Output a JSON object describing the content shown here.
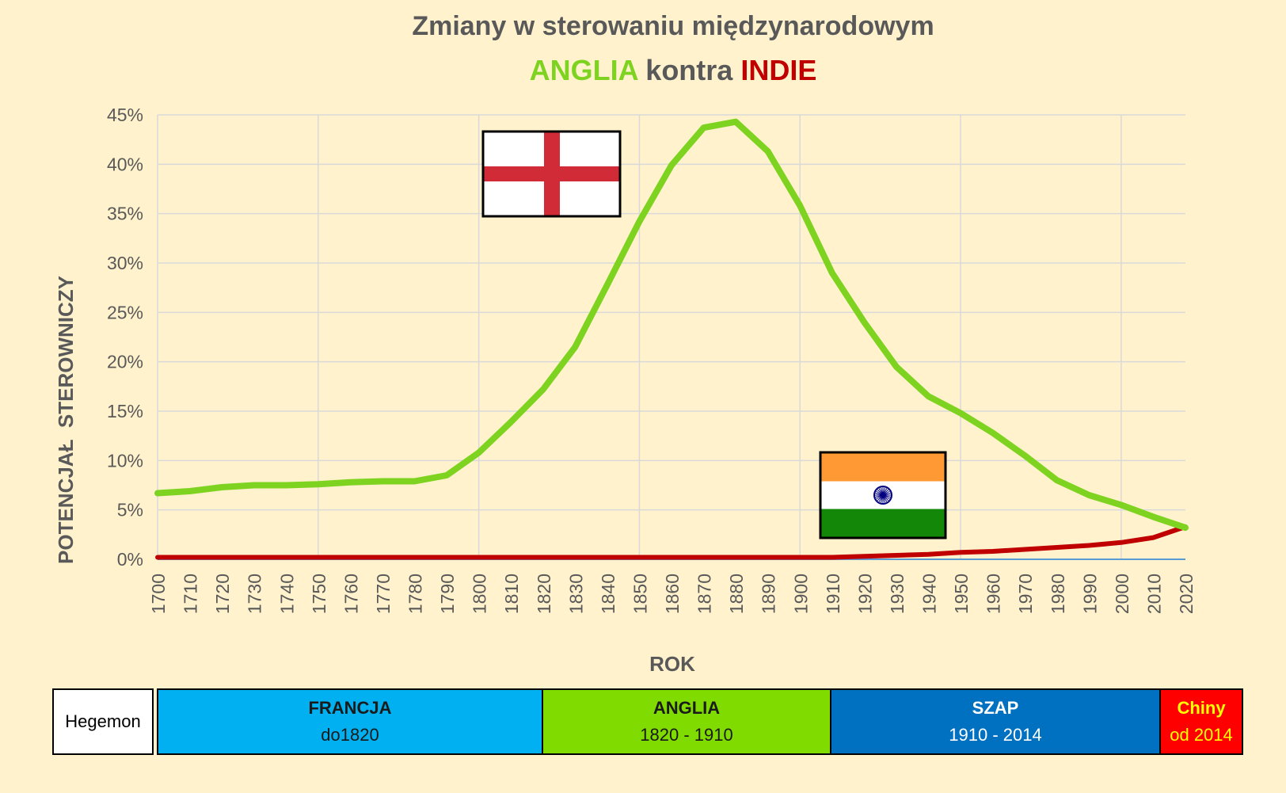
{
  "colors": {
    "anglia": "#7ed321",
    "indie": "#c00000",
    "flag_england_red": "#d22b38",
    "flag_india_saffron": "#ff9933",
    "flag_india_green": "#138808",
    "flag_india_chakra": "#000080"
  },
  "chart_data": {
    "type": "line",
    "title": "Zmiany w sterowaniu międzynarodowym",
    "subtitle_parts": {
      "a": "ANGLIA",
      "mid": " kontra ",
      "b": "INDIE"
    },
    "xlabel": "ROK",
    "ylabel": "POTENCJAŁ  STEROWNICZY",
    "ylim": [
      0,
      45
    ],
    "y_ticks": [
      "0%",
      "5%",
      "10%",
      "15%",
      "20%",
      "25%",
      "30%",
      "35%",
      "40%",
      "45%"
    ],
    "x": [
      1700,
      1710,
      1720,
      1730,
      1740,
      1750,
      1760,
      1770,
      1780,
      1790,
      1800,
      1810,
      1820,
      1830,
      1840,
      1850,
      1860,
      1870,
      1880,
      1890,
      1900,
      1910,
      1920,
      1930,
      1940,
      1950,
      1960,
      1970,
      1980,
      1990,
      2000,
      2010,
      2020
    ],
    "grid": true,
    "legend": "none",
    "series": [
      {
        "key": "anglia",
        "values": [
          6.7,
          6.9,
          7.3,
          7.5,
          7.5,
          7.6,
          7.8,
          7.9,
          7.9,
          8.5,
          10.8,
          13.9,
          17.2,
          21.5,
          27.8,
          34.2,
          39.9,
          43.7,
          44.3,
          41.3,
          35.8,
          29.0,
          24.0,
          19.5,
          16.5,
          14.8,
          12.8,
          10.5,
          8.0,
          6.5,
          5.5,
          4.3,
          3.2
        ]
      },
      {
        "key": "indie",
        "values": [
          0.2,
          0.2,
          0.2,
          0.2,
          0.2,
          0.2,
          0.2,
          0.2,
          0.2,
          0.2,
          0.2,
          0.2,
          0.2,
          0.2,
          0.2,
          0.2,
          0.2,
          0.2,
          0.2,
          0.2,
          0.2,
          0.2,
          0.3,
          0.4,
          0.5,
          0.7,
          0.8,
          1.0,
          1.2,
          1.4,
          1.7,
          2.2,
          3.3
        ]
      }
    ]
  },
  "hegemon": {
    "label": "Hegemon",
    "periods": [
      {
        "name": "FRANCJA",
        "range": "do1820"
      },
      {
        "name": "ANGLIA",
        "range": "1820 - 1910"
      },
      {
        "name": "SZAP",
        "range": "1910 - 2014"
      },
      {
        "name": "Chiny",
        "range": "od 2014"
      }
    ]
  }
}
